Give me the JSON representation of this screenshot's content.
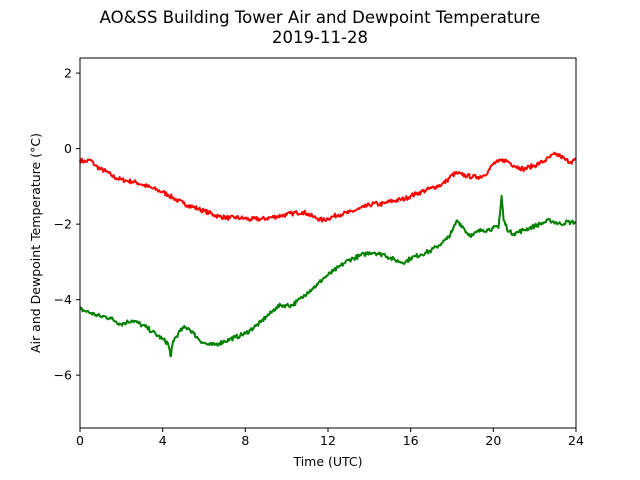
{
  "chart_data": {
    "type": "line",
    "title": "AO&SS Building Tower Air and Dewpoint Temperature",
    "subtitle": "2019-11-28",
    "xlabel": "Time (UTC)",
    "ylabel": "Air and Dewpoint Temperature (°C)",
    "xlim": [
      0,
      24
    ],
    "ylim": [
      -7.4,
      2.4
    ],
    "xticks": [
      0,
      4,
      8,
      12,
      16,
      20,
      24
    ],
    "yticks": [
      -6,
      -4,
      -2,
      0,
      2
    ],
    "grid": false,
    "series": [
      {
        "color": "#ff0000",
        "points": [
          [
            0.0,
            -0.3
          ],
          [
            0.25,
            -0.35
          ],
          [
            0.5,
            -0.3
          ],
          [
            0.75,
            -0.45
          ],
          [
            1.0,
            -0.55
          ],
          [
            1.25,
            -0.6
          ],
          [
            1.5,
            -0.7
          ],
          [
            1.75,
            -0.78
          ],
          [
            2.0,
            -0.82
          ],
          [
            2.25,
            -0.85
          ],
          [
            2.5,
            -0.87
          ],
          [
            2.75,
            -0.9
          ],
          [
            3.0,
            -0.95
          ],
          [
            3.25,
            -1.0
          ],
          [
            3.5,
            -1.05
          ],
          [
            3.75,
            -1.1
          ],
          [
            4.0,
            -1.15
          ],
          [
            4.25,
            -1.22
          ],
          [
            4.5,
            -1.3
          ],
          [
            4.75,
            -1.38
          ],
          [
            5.0,
            -1.45
          ],
          [
            5.25,
            -1.5
          ],
          [
            5.5,
            -1.55
          ],
          [
            5.75,
            -1.6
          ],
          [
            6.0,
            -1.65
          ],
          [
            6.25,
            -1.7
          ],
          [
            6.5,
            -1.76
          ],
          [
            6.75,
            -1.8
          ],
          [
            7.0,
            -1.82
          ],
          [
            7.25,
            -1.84
          ],
          [
            7.5,
            -1.82
          ],
          [
            7.75,
            -1.84
          ],
          [
            8.0,
            -1.85
          ],
          [
            8.25,
            -1.88
          ],
          [
            8.5,
            -1.86
          ],
          [
            8.75,
            -1.87
          ],
          [
            9.0,
            -1.85
          ],
          [
            9.25,
            -1.82
          ],
          [
            9.5,
            -1.8
          ],
          [
            9.75,
            -1.77
          ],
          [
            10.0,
            -1.75
          ],
          [
            10.25,
            -1.72
          ],
          [
            10.5,
            -1.7
          ],
          [
            10.75,
            -1.68
          ],
          [
            11.0,
            -1.72
          ],
          [
            11.25,
            -1.8
          ],
          [
            11.5,
            -1.85
          ],
          [
            11.75,
            -1.9
          ],
          [
            12.0,
            -1.85
          ],
          [
            12.25,
            -1.8
          ],
          [
            12.5,
            -1.75
          ],
          [
            12.75,
            -1.72
          ],
          [
            13.0,
            -1.7
          ],
          [
            13.25,
            -1.65
          ],
          [
            13.5,
            -1.6
          ],
          [
            13.75,
            -1.55
          ],
          [
            14.0,
            -1.5
          ],
          [
            14.25,
            -1.45
          ],
          [
            14.5,
            -1.48
          ],
          [
            14.75,
            -1.45
          ],
          [
            15.0,
            -1.4
          ],
          [
            15.25,
            -1.38
          ],
          [
            15.5,
            -1.35
          ],
          [
            15.75,
            -1.32
          ],
          [
            16.0,
            -1.25
          ],
          [
            16.25,
            -1.2
          ],
          [
            16.5,
            -1.15
          ],
          [
            16.75,
            -1.1
          ],
          [
            17.0,
            -1.05
          ],
          [
            17.25,
            -1.0
          ],
          [
            17.5,
            -0.95
          ],
          [
            17.75,
            -0.85
          ],
          [
            18.0,
            -0.7
          ],
          [
            18.25,
            -0.65
          ],
          [
            18.5,
            -0.7
          ],
          [
            18.75,
            -0.72
          ],
          [
            19.0,
            -0.75
          ],
          [
            19.25,
            -0.75
          ],
          [
            19.5,
            -0.72
          ],
          [
            19.75,
            -0.6
          ],
          [
            20.0,
            -0.4
          ],
          [
            20.25,
            -0.35
          ],
          [
            20.5,
            -0.3
          ],
          [
            20.75,
            -0.35
          ],
          [
            21.0,
            -0.45
          ],
          [
            21.25,
            -0.5
          ],
          [
            21.5,
            -0.55
          ],
          [
            21.75,
            -0.48
          ],
          [
            22.0,
            -0.45
          ],
          [
            22.25,
            -0.38
          ],
          [
            22.5,
            -0.32
          ],
          [
            22.75,
            -0.22
          ],
          [
            23.0,
            -0.15
          ],
          [
            23.25,
            -0.2
          ],
          [
            23.5,
            -0.3
          ],
          [
            23.75,
            -0.35
          ],
          [
            24.0,
            -0.3
          ]
        ]
      },
      {
        "color": "#008000",
        "points": [
          [
            0.0,
            -4.25
          ],
          [
            0.25,
            -4.3
          ],
          [
            0.5,
            -4.35
          ],
          [
            0.75,
            -4.4
          ],
          [
            1.0,
            -4.45
          ],
          [
            1.25,
            -4.45
          ],
          [
            1.5,
            -4.5
          ],
          [
            1.75,
            -4.58
          ],
          [
            2.0,
            -4.65
          ],
          [
            2.25,
            -4.6
          ],
          [
            2.5,
            -4.55
          ],
          [
            2.75,
            -4.6
          ],
          [
            3.0,
            -4.68
          ],
          [
            3.25,
            -4.75
          ],
          [
            3.5,
            -4.85
          ],
          [
            3.75,
            -4.95
          ],
          [
            4.0,
            -5.05
          ],
          [
            4.25,
            -5.15
          ],
          [
            4.4,
            -5.5
          ],
          [
            4.5,
            -5.1
          ],
          [
            4.75,
            -4.9
          ],
          [
            5.0,
            -4.75
          ],
          [
            5.25,
            -4.75
          ],
          [
            5.5,
            -4.9
          ],
          [
            5.75,
            -5.05
          ],
          [
            6.0,
            -5.15
          ],
          [
            6.25,
            -5.2
          ],
          [
            6.5,
            -5.2
          ],
          [
            6.75,
            -5.15
          ],
          [
            7.0,
            -5.1
          ],
          [
            7.25,
            -5.05
          ],
          [
            7.5,
            -5.0
          ],
          [
            7.75,
            -4.95
          ],
          [
            8.0,
            -4.9
          ],
          [
            8.25,
            -4.8
          ],
          [
            8.5,
            -4.7
          ],
          [
            8.75,
            -4.6
          ],
          [
            9.0,
            -4.45
          ],
          [
            9.25,
            -4.35
          ],
          [
            9.5,
            -4.2
          ],
          [
            9.75,
            -4.15
          ],
          [
            10.0,
            -4.15
          ],
          [
            10.25,
            -4.15
          ],
          [
            10.5,
            -4.05
          ],
          [
            10.75,
            -3.95
          ],
          [
            11.0,
            -3.8
          ],
          [
            11.25,
            -3.7
          ],
          [
            11.5,
            -3.6
          ],
          [
            11.75,
            -3.45
          ],
          [
            12.0,
            -3.35
          ],
          [
            12.25,
            -3.25
          ],
          [
            12.5,
            -3.15
          ],
          [
            12.75,
            -3.05
          ],
          [
            13.0,
            -2.95
          ],
          [
            13.25,
            -2.9
          ],
          [
            13.5,
            -2.85
          ],
          [
            13.75,
            -2.8
          ],
          [
            14.0,
            -2.75
          ],
          [
            14.25,
            -2.75
          ],
          [
            14.5,
            -2.8
          ],
          [
            14.75,
            -2.8
          ],
          [
            15.0,
            -2.9
          ],
          [
            15.25,
            -2.95
          ],
          [
            15.5,
            -3.0
          ],
          [
            15.75,
            -3.0
          ],
          [
            16.0,
            -2.9
          ],
          [
            16.25,
            -2.85
          ],
          [
            16.5,
            -2.8
          ],
          [
            16.75,
            -2.75
          ],
          [
            17.0,
            -2.7
          ],
          [
            17.25,
            -2.6
          ],
          [
            17.5,
            -2.5
          ],
          [
            17.75,
            -2.4
          ],
          [
            18.0,
            -2.2
          ],
          [
            18.25,
            -1.9
          ],
          [
            18.5,
            -2.05
          ],
          [
            18.75,
            -2.25
          ],
          [
            19.0,
            -2.3
          ],
          [
            19.25,
            -2.2
          ],
          [
            19.5,
            -2.15
          ],
          [
            19.75,
            -2.15
          ],
          [
            20.0,
            -2.1
          ],
          [
            20.25,
            -2.1
          ],
          [
            20.4,
            -1.25
          ],
          [
            20.5,
            -1.9
          ],
          [
            20.75,
            -2.2
          ],
          [
            21.0,
            -2.25
          ],
          [
            21.25,
            -2.2
          ],
          [
            21.5,
            -2.15
          ],
          [
            21.75,
            -2.1
          ],
          [
            22.0,
            -2.05
          ],
          [
            22.25,
            -2.0
          ],
          [
            22.5,
            -1.95
          ],
          [
            22.75,
            -1.9
          ],
          [
            23.0,
            -1.95
          ],
          [
            23.25,
            -2.0
          ],
          [
            23.5,
            -1.95
          ],
          [
            23.75,
            -1.95
          ],
          [
            24.0,
            -1.95
          ]
        ]
      }
    ]
  }
}
